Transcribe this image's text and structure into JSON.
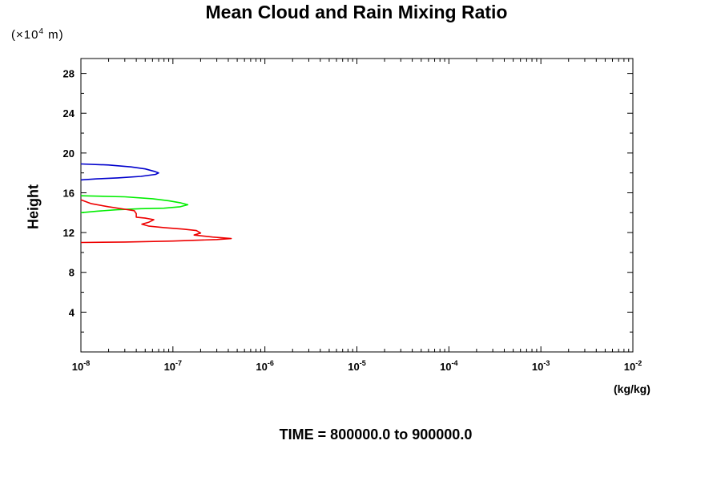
{
  "chart_data": {
    "type": "line",
    "title": "Mean Cloud and Rain Mixing Ratio",
    "ylabel": "Height",
    "height_unit_prefix": "(×10",
    "height_unit_exp": "4",
    "height_unit_suffix": " m)",
    "xlabel_unit": "(kg/kg)",
    "x_scale": "log",
    "xlim": [
      1e-08,
      0.01
    ],
    "ylim": [
      0,
      29.5
    ],
    "x_tick_labels": [
      {
        "base": "10",
        "exp": "-8",
        "value": 1e-08
      },
      {
        "base": "10",
        "exp": "-7",
        "value": 1e-07
      },
      {
        "base": "10",
        "exp": "-6",
        "value": 1e-06
      },
      {
        "base": "10",
        "exp": "-5",
        "value": 1e-05
      },
      {
        "base": "10",
        "exp": "-4",
        "value": 0.0001
      },
      {
        "base": "10",
        "exp": "-3",
        "value": 0.001
      },
      {
        "base": "10",
        "exp": "-2",
        "value": 0.01
      }
    ],
    "y_ticks": [
      4,
      8,
      12,
      16,
      20,
      24,
      28
    ],
    "grid": false,
    "series": [
      {
        "color": "#0000cc",
        "points": [
          [
            1e-08,
            18.9
          ],
          [
            2e-08,
            18.8
          ],
          [
            3.5e-08,
            18.6
          ],
          [
            5e-08,
            18.4
          ],
          [
            6.3e-08,
            18.15
          ],
          [
            7e-08,
            18.0
          ],
          [
            6.5e-08,
            17.85
          ],
          [
            4.5e-08,
            17.65
          ],
          [
            2.5e-08,
            17.5
          ],
          [
            1.5e-08,
            17.4
          ],
          [
            1e-08,
            17.3
          ]
        ]
      },
      {
        "color": "#00ee00",
        "points": [
          [
            1e-08,
            15.7
          ],
          [
            3e-08,
            15.6
          ],
          [
            6e-08,
            15.4
          ],
          [
            9e-08,
            15.2
          ],
          [
            1.2e-07,
            15.0
          ],
          [
            1.45e-07,
            14.8
          ],
          [
            1.2e-07,
            14.6
          ],
          [
            8e-08,
            14.45
          ],
          [
            4.5e-08,
            14.4
          ],
          [
            2.5e-08,
            14.3
          ],
          [
            1.5e-08,
            14.15
          ],
          [
            1e-08,
            14.0
          ]
        ]
      },
      {
        "color": "#ee0000",
        "points": [
          [
            1e-08,
            15.3
          ],
          [
            1.3e-08,
            14.9
          ],
          [
            2e-08,
            14.6
          ],
          [
            3e-08,
            14.35
          ],
          [
            3.8e-08,
            14.2
          ],
          [
            4e-08,
            13.9
          ],
          [
            4e-08,
            13.55
          ],
          [
            5e-08,
            13.45
          ],
          [
            6.2e-08,
            13.3
          ],
          [
            5.5e-08,
            13.05
          ],
          [
            4.6e-08,
            12.85
          ],
          [
            5.5e-08,
            12.65
          ],
          [
            8e-08,
            12.5
          ],
          [
            1.3e-07,
            12.35
          ],
          [
            1.8e-07,
            12.2
          ],
          [
            2e-07,
            11.95
          ],
          [
            1.7e-07,
            11.75
          ],
          [
            2.7e-07,
            11.55
          ],
          [
            4.3e-07,
            11.4
          ],
          [
            3e-07,
            11.3
          ],
          [
            1e-07,
            11.15
          ],
          [
            3e-08,
            11.05
          ],
          [
            1e-08,
            11.0
          ]
        ]
      }
    ],
    "time_range_text": "TIME = 800000.0 to 900000.0"
  }
}
